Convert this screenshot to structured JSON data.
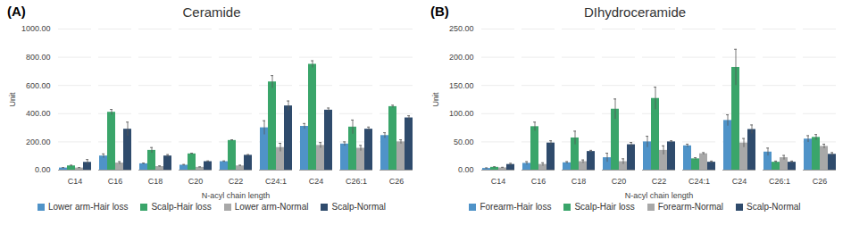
{
  "chart_data": [
    {
      "type": "bar",
      "title": "Ceramide",
      "annotations": [
        "(A)"
      ],
      "x_label": "N-acyl chain length",
      "y_label": "Unit",
      "categories": [
        "C14",
        "C16",
        "C18",
        "C20",
        "C22",
        "C24:1",
        "C24",
        "C26:1",
        "C26"
      ],
      "series": [
        {
          "name": "Lower arm-Hair loss",
          "color": "#4f93c8",
          "values": [
            15,
            100,
            45,
            35,
            60,
            300,
            310,
            185,
            245
          ],
          "errors": [
            3,
            15,
            5,
            5,
            5,
            50,
            20,
            15,
            20
          ]
        },
        {
          "name": "Scalp-Hair loss",
          "color": "#3aa56a",
          "values": [
            30,
            410,
            140,
            115,
            210,
            625,
            750,
            305,
            450
          ],
          "errors": [
            5,
            20,
            20,
            5,
            5,
            45,
            25,
            50,
            10
          ]
        },
        {
          "name": "Lower arm-Normal",
          "color": "#a8a8a8",
          "values": [
            15,
            50,
            25,
            20,
            30,
            160,
            175,
            155,
            200
          ],
          "errors": [
            3,
            10,
            5,
            3,
            5,
            30,
            20,
            20,
            15
          ]
        },
        {
          "name": "Scalp-Normal",
          "color": "#2f4b6c",
          "values": [
            55,
            290,
            100,
            60,
            105,
            455,
            425,
            290,
            370
          ],
          "errors": [
            20,
            50,
            10,
            5,
            5,
            35,
            15,
            15,
            15
          ]
        }
      ],
      "ylim": [
        0,
        1000
      ],
      "yticks": [
        {
          "value": 0,
          "label": "0.00"
        },
        {
          "value": 200,
          "label": "200.00"
        },
        {
          "value": 400,
          "label": "400.00"
        },
        {
          "value": 600,
          "label": "600.00"
        },
        {
          "value": 800,
          "label": "800.00"
        },
        {
          "value": 1000,
          "label": "1000.00"
        }
      ],
      "grid": true,
      "legend": "bottom"
    },
    {
      "type": "bar",
      "title": "DIhydroceramide",
      "annotations": [
        "(B)"
      ],
      "x_label": "N-acyl chain length",
      "y_label": "Unit",
      "categories": [
        "C14",
        "C16",
        "C18",
        "C20",
        "C22",
        "C24:1",
        "C24",
        "C26:1",
        "C26"
      ],
      "series": [
        {
          "name": "Forearm-Hair loss",
          "color": "#4f93c8",
          "values": [
            3,
            12,
            13,
            22,
            50,
            43,
            88,
            32,
            55
          ],
          "errors": [
            1,
            3,
            2,
            8,
            10,
            3,
            10,
            7,
            6
          ]
        },
        {
          "name": "Scalp-Hair loss",
          "color": "#3aa56a",
          "values": [
            5,
            77,
            57,
            108,
            127,
            20,
            182,
            14,
            58
          ],
          "errors": [
            1,
            8,
            12,
            18,
            20,
            2,
            32,
            2,
            5
          ]
        },
        {
          "name": "Forearm-Normal",
          "color": "#a8a8a8",
          "values": [
            4,
            10,
            15,
            15,
            35,
            29,
            48,
            22,
            42
          ],
          "errors": [
            1,
            3,
            3,
            5,
            8,
            2,
            8,
            4,
            4
          ]
        },
        {
          "name": "Scalp-Normal",
          "color": "#2f4b6c",
          "values": [
            10,
            48,
            33,
            45,
            50,
            14,
            72,
            14,
            28
          ],
          "errors": [
            2,
            4,
            2,
            4,
            2,
            2,
            8,
            2,
            3
          ]
        }
      ],
      "ylim": [
        0,
        250
      ],
      "yticks": [
        {
          "value": 0,
          "label": "0.00"
        },
        {
          "value": 50,
          "label": "50.00"
        },
        {
          "value": 100,
          "label": "100.00"
        },
        {
          "value": 150,
          "label": "150.00"
        },
        {
          "value": 200,
          "label": "200.00"
        },
        {
          "value": 250,
          "label": "250.00"
        }
      ],
      "grid": true,
      "legend": "bottom"
    }
  ]
}
